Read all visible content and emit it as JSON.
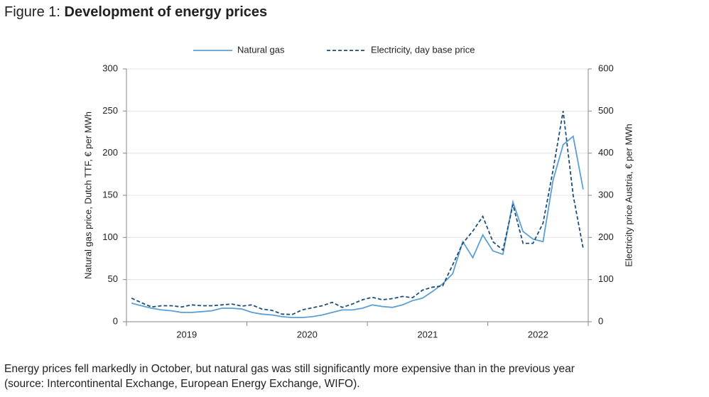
{
  "chart_data": {
    "type": "line",
    "title_prefix": "Figure 1:",
    "title": "Development of energy prices",
    "ylabel": "Natural gas price, Dutch TTF, € per MWh",
    "y2label": "Electricity price Austria, € per MWh",
    "categories": [
      "2019",
      null,
      null,
      null,
      null,
      null,
      null,
      null,
      null,
      null,
      null,
      null,
      "2020",
      null,
      null,
      null,
      null,
      null,
      null,
      null,
      null,
      null,
      null,
      null,
      "2021",
      null,
      null,
      null,
      null,
      null,
      null,
      null,
      null,
      null,
      null,
      null,
      "2022",
      null,
      null,
      null,
      null,
      null,
      null,
      null,
      null,
      null
    ],
    "series": [
      {
        "name": "Natural gas",
        "color": "#5b9fd6",
        "dash": "none",
        "values": [
          22,
          19,
          16,
          14,
          13,
          11,
          11,
          12,
          13,
          16,
          16,
          15,
          11,
          9,
          8,
          6,
          5,
          5,
          6,
          8,
          11,
          14,
          14,
          16,
          20,
          18,
          17,
          20,
          25,
          28,
          36,
          45,
          57,
          95,
          76,
          103,
          84,
          80,
          142,
          107,
          98,
          95,
          168,
          210,
          220,
          157
        ]
      },
      {
        "name": "Electricity, day base price",
        "color": "#1f4e79",
        "dash": "5,3",
        "axis": "y2",
        "values": [
          56,
          45,
          35,
          38,
          38,
          35,
          40,
          38,
          38,
          40,
          42,
          37,
          40,
          30,
          27,
          18,
          17,
          28,
          33,
          38,
          46,
          34,
          42,
          52,
          58,
          52,
          55,
          60,
          57,
          75,
          82,
          85,
          135,
          186,
          215,
          250,
          190,
          170,
          278,
          186,
          186,
          234,
          360,
          500,
          300,
          174
        ]
      }
    ],
    "ylim": [
      0,
      300
    ],
    "yticks": [
      0,
      50,
      100,
      150,
      200,
      250,
      300
    ],
    "y2lim": [
      0,
      600
    ],
    "y2ticks": [
      0,
      100,
      200,
      300,
      400,
      500,
      600
    ],
    "grid": true,
    "legend": "top",
    "caption": [
      "Energy prices fell markedly in October, but natural gas was still significantly more expensive than in the previous year",
      "(source: Intercontinental Exchange, European Energy Exchange, WIFO)."
    ]
  }
}
